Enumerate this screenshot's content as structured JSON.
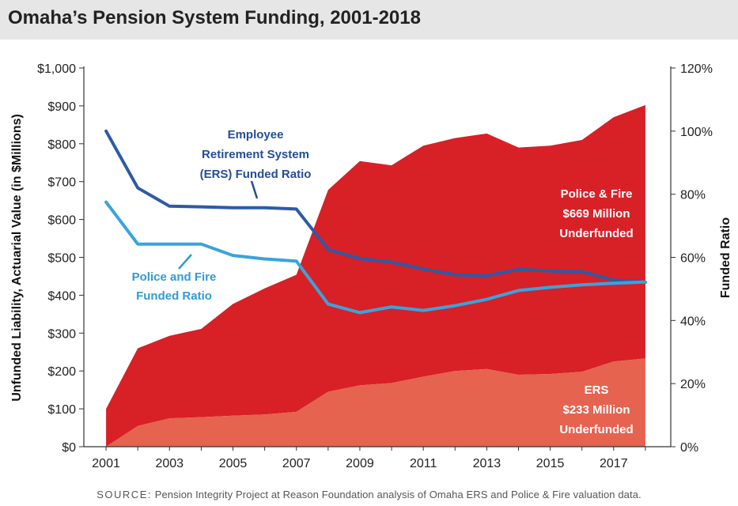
{
  "header": {
    "title": "Omaha’s Pension System Funding, 2001-2018"
  },
  "source": {
    "label": "SOURCE:",
    "text": "Pension Integrity Project at Reason Foundation analysis of Omaha ERS and Police & Fire valuation data."
  },
  "colors": {
    "police_fire_area": "#d82027",
    "ers_area": "#e5634f",
    "ers_line": "#2e5aa6",
    "pf_line": "#3aa3dc",
    "ers_label": "#244e96",
    "pf_label": "#2f9bd8"
  },
  "chart_data": {
    "type": "area",
    "x": [
      2001,
      2002,
      2003,
      2004,
      2005,
      2006,
      2007,
      2008,
      2009,
      2010,
      2011,
      2012,
      2013,
      2014,
      2015,
      2016,
      2017,
      2018
    ],
    "xticks": [
      "2001",
      "2003",
      "2005",
      "2007",
      "2009",
      "2011",
      "2013",
      "2015",
      "2017"
    ],
    "ylabel": "Unfunded Liability, Actuarial Value (in $Millions)",
    "y2label": "Funded Ratio",
    "ylim": [
      0,
      1000
    ],
    "y2lim": [
      0,
      1.2
    ],
    "yticks": [
      "$0",
      "$100",
      "$200",
      "$300",
      "$400",
      "$500",
      "$600",
      "$700",
      "$800",
      "$900",
      "$1,000"
    ],
    "y2ticks": [
      "0%",
      "20%",
      "40%",
      "60%",
      "80%",
      "100%",
      "120%"
    ],
    "areas": [
      {
        "name": "ERS",
        "values": [
          0,
          55,
          75,
          78,
          82,
          85,
          92,
          145,
          162,
          168,
          185,
          200,
          205,
          190,
          192,
          198,
          225,
          233
        ]
      },
      {
        "name": "Police & Fire",
        "values": [
          100,
          205,
          218,
          233,
          295,
          333,
          362,
          533,
          592,
          575,
          610,
          615,
          622,
          600,
          603,
          612,
          645,
          669
        ]
      }
    ],
    "lines": [
      {
        "name": "Employee Retirement System (ERS) Funded Ratio",
        "axis": "right",
        "values": [
          1.0,
          0.82,
          0.762,
          0.76,
          0.757,
          0.757,
          0.753,
          0.625,
          0.596,
          0.585,
          0.563,
          0.545,
          0.542,
          0.562,
          0.557,
          0.555,
          0.528,
          0.521
        ]
      },
      {
        "name": "Police and Fire Funded Ratio",
        "axis": "right",
        "values": [
          0.775,
          0.642,
          0.642,
          0.642,
          0.606,
          0.595,
          0.588,
          0.452,
          0.425,
          0.443,
          0.432,
          0.447,
          0.467,
          0.495,
          0.505,
          0.513,
          0.518,
          0.522
        ]
      }
    ],
    "annotations": {
      "ers_ratio": [
        "Employee",
        "Retirement System",
        "(ERS) Funded Ratio"
      ],
      "pf_ratio": [
        "Police and Fire",
        "Funded Ratio"
      ],
      "pf_area": [
        "Police & Fire",
        "$669 Million",
        "Underfunded"
      ],
      "ers_area": [
        "ERS",
        "$233 Million",
        "Underfunded"
      ]
    }
  }
}
